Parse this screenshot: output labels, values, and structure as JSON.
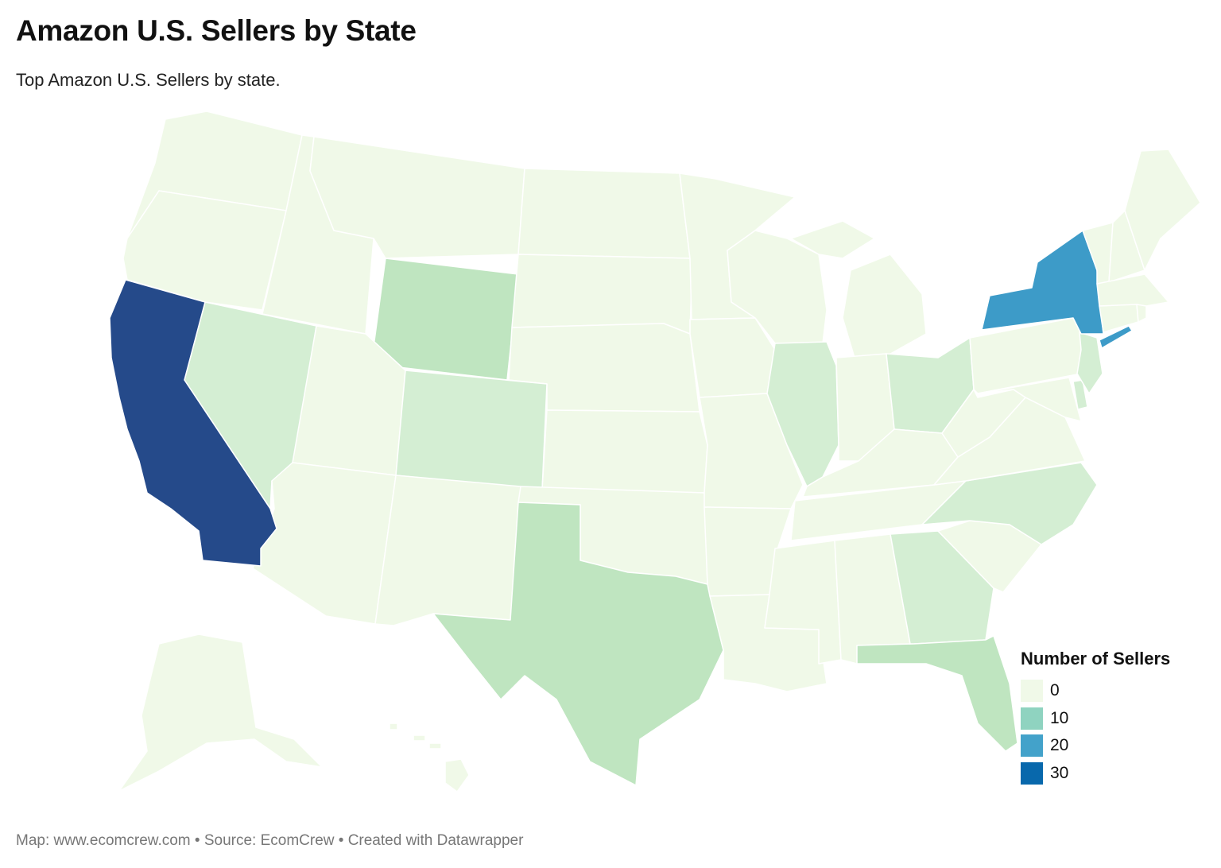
{
  "title": "Amazon U.S. Sellers by State",
  "subtitle": "Top Amazon U.S. Sellers by state.",
  "footer": "Map: www.ecomcrew.com • Source: EcomCrew • Created with Datawrapper",
  "legend": {
    "title": "Number of Sellers",
    "items": [
      {
        "label": "0",
        "color": "#f0f9e8"
      },
      {
        "label": "10",
        "color": "#8fd3c0"
      },
      {
        "label": "20",
        "color": "#43a2ca"
      },
      {
        "label": "30",
        "color": "#0868ac"
      }
    ]
  },
  "colors": {
    "level0": "#f0f9e8",
    "level1": "#d4eed3",
    "level2": "#bfe5c0",
    "ny": "#3d9bc8",
    "ca": "#254a8a",
    "border": "#ffffff"
  },
  "map_data": {
    "type": "choropleth",
    "regions": [
      {
        "state": "California",
        "value": 30
      },
      {
        "state": "New York",
        "value": 20
      },
      {
        "state": "Texas",
        "value": 4
      },
      {
        "state": "Florida",
        "value": 4
      },
      {
        "state": "Wyoming",
        "value": 4
      },
      {
        "state": "Georgia",
        "value": 2
      },
      {
        "state": "Colorado",
        "value": 2
      },
      {
        "state": "Nevada",
        "value": 2
      },
      {
        "state": "Illinois",
        "value": 2
      },
      {
        "state": "Ohio",
        "value": 2
      },
      {
        "state": "North Carolina",
        "value": 2
      },
      {
        "state": "New Jersey",
        "value": 2
      }
    ]
  }
}
